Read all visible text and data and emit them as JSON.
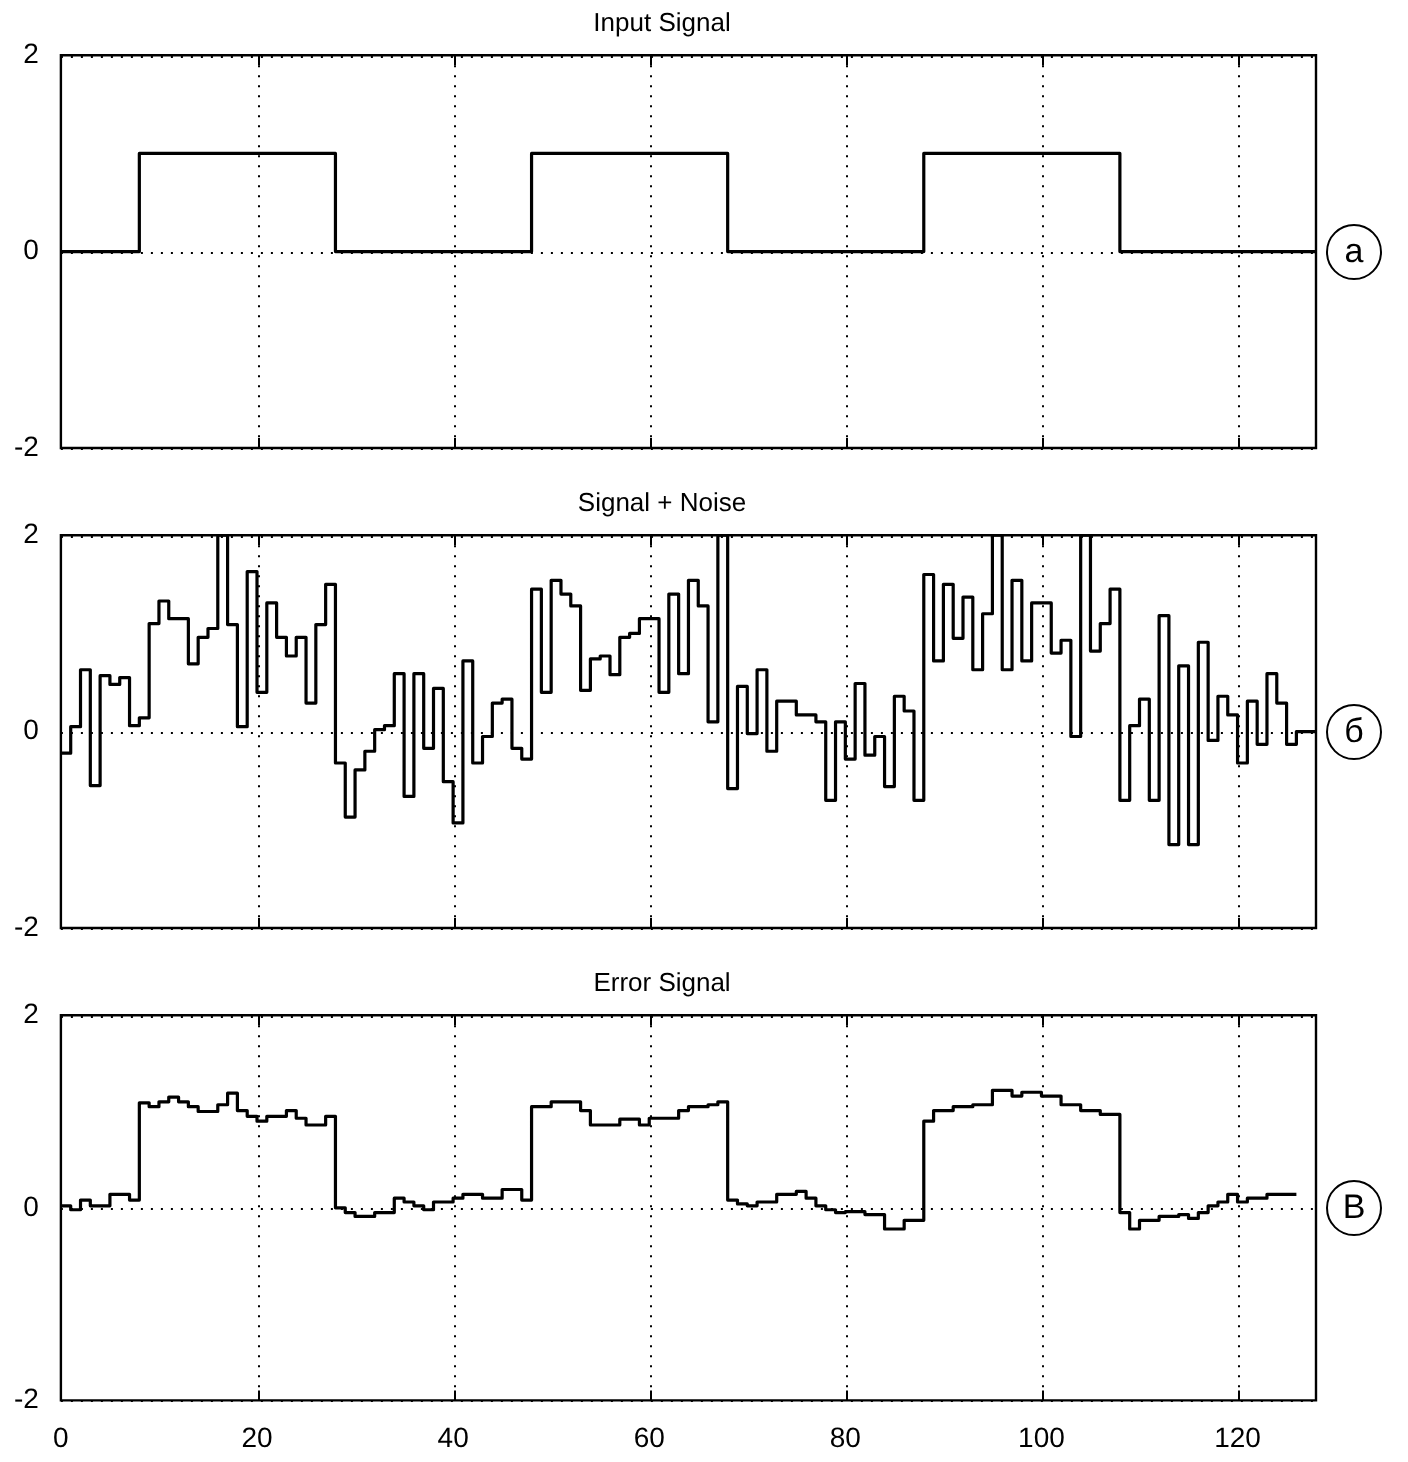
{
  "chart_data": [
    {
      "type": "step",
      "title": "Input Signal",
      "annotations": [
        "а"
      ],
      "xlim": [
        0,
        128
      ],
      "xticks": [
        0,
        20,
        40,
        60,
        80,
        100,
        120
      ],
      "ylim": [
        -2,
        2
      ],
      "yticks": [
        -2,
        0,
        2
      ],
      "grid": true,
      "tick_labels": "y",
      "series": [
        {
          "color": "#000000",
          "x": [
            0,
            8,
            28,
            48,
            68,
            88,
            108,
            128
          ],
          "values": [
            0,
            1,
            0,
            1,
            0,
            1,
            0,
            0
          ]
        }
      ]
    },
    {
      "type": "step",
      "title": "Signal + Noise",
      "annotations": [
        "б"
      ],
      "xlim": [
        0,
        128
      ],
      "xticks": [
        0,
        20,
        40,
        60,
        80,
        100,
        120
      ],
      "ylim": [
        -2,
        2
      ],
      "yticks": [
        -2,
        0,
        2
      ],
      "grid": true,
      "tick_labels": "y",
      "series": [
        {
          "color": "#000000",
          "x": [
            0,
            1,
            2,
            3,
            4,
            5,
            6,
            7,
            8,
            9,
            10,
            11,
            13,
            14,
            15,
            16,
            17,
            18,
            19,
            20,
            21,
            22,
            23,
            24,
            25,
            26,
            27,
            28,
            29,
            30,
            31,
            32,
            33,
            34,
            35,
            36,
            37,
            38,
            39,
            40,
            41,
            42,
            43,
            44,
            45,
            46,
            47,
            48,
            49,
            50,
            51,
            52,
            53,
            54,
            55,
            56,
            57,
            58,
            59,
            61,
            62,
            63,
            64,
            65,
            66,
            67,
            68,
            69,
            70,
            71,
            72,
            73,
            75,
            77,
            78,
            79,
            80,
            81,
            82,
            83,
            84,
            85,
            86,
            87,
            88,
            89,
            90,
            91,
            92,
            93,
            94,
            95,
            96,
            97,
            98,
            99,
            101,
            102,
            103,
            104,
            105,
            106,
            107,
            108,
            109,
            110,
            111,
            112,
            113,
            114,
            115,
            116,
            117,
            118,
            119,
            120,
            121,
            122,
            123,
            124,
            125,
            126,
            128
          ],
          "values": [
            -0.22,
            0.05,
            0.63,
            -0.55,
            0.57,
            0.48,
            0.55,
            0.06,
            0.14,
            1.1,
            1.33,
            1.15,
            0.69,
            0.96,
            1.05,
            2,
            1.09,
            0.05,
            1.63,
            0.4,
            1.31,
            0.96,
            0.77,
            0.96,
            0.29,
            1.09,
            1.5,
            -0.32,
            -0.87,
            -0.39,
            -0.2,
            0.02,
            0.06,
            0.59,
            -0.66,
            0.59,
            -0.17,
            0.44,
            -0.51,
            -0.93,
            0.72,
            -0.32,
            -0.05,
            0.29,
            0.33,
            -0.17,
            -0.28,
            1.45,
            0.4,
            1.54,
            1.4,
            1.28,
            0.42,
            0.74,
            0.77,
            0.58,
            0.96,
            1.0,
            1.15,
            0.4,
            1.4,
            0.59,
            1.54,
            1.28,
            0.1,
            2,
            -0.58,
            0.46,
            -0.02,
            0.63,
            -0.2,
            0.31,
            0.17,
            0.1,
            -0.7,
            0.1,
            -0.28,
            0.49,
            -0.24,
            -0.05,
            -0.56,
            0.36,
            0.21,
            -0.7,
            1.6,
            0.72,
            1.5,
            0.95,
            1.37,
            0.63,
            1.2,
            2,
            0.63,
            1.54,
            0.72,
            1.31,
            0.8,
            0.93,
            -0.05,
            2,
            0.82,
            1.1,
            1.45,
            -0.7,
            0.06,
            0.33,
            -0.7,
            1.18,
            -1.15,
            0.67,
            -1.15,
            0.91,
            -0.09,
            0.36,
            0.17,
            -0.32,
            0.31,
            -0.13,
            0.59,
            0.29,
            -0.13,
            0,
            0
          ]
        }
      ]
    },
    {
      "type": "step",
      "title": "Error Signal",
      "annotations": [
        "В"
      ],
      "xlim": [
        0,
        128
      ],
      "xticks": [
        0,
        20,
        40,
        60,
        80,
        100,
        120
      ],
      "ylim": [
        -2,
        2
      ],
      "yticks": [
        -2,
        0,
        2
      ],
      "grid": true,
      "series": [
        {
          "color": "#000000",
          "x": [
            0,
            1,
            2,
            3,
            5,
            7,
            8,
            9,
            10,
            11,
            12,
            13,
            14,
            16,
            17,
            18,
            19,
            20,
            21,
            23,
            24,
            25,
            27,
            28,
            29,
            30,
            32,
            34,
            35,
            36,
            37,
            38,
            40,
            41,
            43,
            45,
            47,
            48,
            50,
            53,
            54,
            57,
            59,
            60,
            63,
            64,
            66,
            67,
            68,
            69,
            70,
            71,
            73,
            75,
            76,
            77,
            78,
            79,
            80,
            82,
            84,
            86,
            88,
            89,
            91,
            93,
            95,
            97,
            98,
            100,
            102,
            104,
            106,
            108,
            109,
            110,
            112,
            114,
            115,
            116,
            117,
            118,
            119,
            120,
            121,
            123,
            126
          ],
          "values": [
            0.02,
            -0.02,
            0.08,
            0.02,
            0.14,
            0.08,
            1.09,
            1.05,
            1.1,
            1.15,
            1.1,
            1.05,
            1.0,
            1.07,
            1.19,
            1.01,
            0.95,
            0.9,
            0.95,
            1.01,
            0.93,
            0.86,
            0.95,
            0,
            -0.05,
            -0.09,
            -0.05,
            0.1,
            0.06,
            0.02,
            -0.02,
            0.06,
            0.1,
            0.14,
            0.1,
            0.19,
            0.08,
            1.05,
            1.1,
            1.01,
            0.86,
            0.92,
            0.86,
            0.93,
            1.01,
            1.05,
            1.07,
            1.1,
            0.08,
            0.04,
            0.02,
            0.06,
            0.14,
            0.17,
            0.1,
            0.02,
            -0.02,
            -0.05,
            -0.04,
            -0.07,
            -0.22,
            -0.13,
            0.9,
            1.01,
            1.05,
            1.07,
            1.22,
            1.16,
            1.2,
            1.16,
            1.07,
            1.01,
            0.97,
            -0.05,
            -0.22,
            -0.13,
            -0.09,
            -0.07,
            -0.11,
            -0.05,
            0.02,
            0.06,
            0.14,
            0.06,
            0.1,
            0.14,
            0.14
          ]
        }
      ]
    }
  ]
}
